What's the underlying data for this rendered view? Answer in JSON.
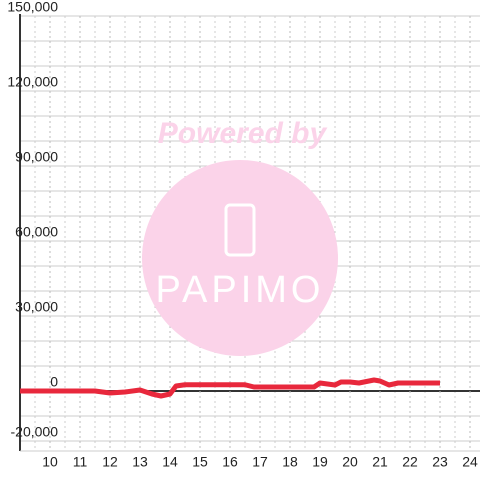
{
  "chart_data": {
    "type": "line",
    "x": [
      9,
      10,
      11,
      11.5,
      12,
      12.5,
      13,
      13.4,
      13.7,
      14,
      14.2,
      14.5,
      15,
      16,
      16.5,
      16.8,
      17,
      18,
      18.8,
      19,
      19.5,
      19.7,
      20,
      20.3,
      20.8,
      21,
      21.3,
      21.6,
      22,
      23
    ],
    "series": [
      {
        "color": "#e8283c",
        "values": [
          0,
          0,
          0,
          0,
          -800,
          -400,
          400,
          -1200,
          -2000,
          -1200,
          2000,
          2500,
          2500,
          2500,
          2500,
          1600,
          1600,
          1600,
          1600,
          3200,
          2400,
          3600,
          3600,
          3200,
          4400,
          4000,
          2400,
          3200,
          3200,
          3200
        ]
      }
    ],
    "xlim": [
      9,
      24.3
    ],
    "ylim": [
      -24000,
      150000
    ],
    "xticks": [
      10,
      11,
      12,
      13,
      14,
      15,
      16,
      17,
      18,
      19,
      20,
      21,
      22,
      23,
      24
    ],
    "yticks": [
      {
        "value": -20000,
        "label": "-20,000"
      },
      0,
      {
        "value": 30000,
        "label": "30,000"
      },
      {
        "value": 60000,
        "label": "60,000"
      },
      {
        "value": 90000,
        "label": "90,000"
      },
      {
        "value": 120000,
        "label": "120,000"
      },
      {
        "value": 150000,
        "label": "150,000"
      }
    ],
    "yminorticks": [
      -20000,
      -10000,
      10000,
      20000,
      40000,
      50000,
      70000,
      80000,
      100000,
      110000,
      130000,
      140000
    ],
    "xminorticks": [
      9.5,
      10.5,
      11.5,
      12.5,
      13.5,
      14.5,
      15.5,
      16.5,
      17.5,
      18.5,
      19.5,
      20.5,
      21.5,
      22.5,
      23.5
    ],
    "grid": true,
    "watermark": {
      "caption": "Powered by",
      "brand": "PAPIMO"
    }
  }
}
